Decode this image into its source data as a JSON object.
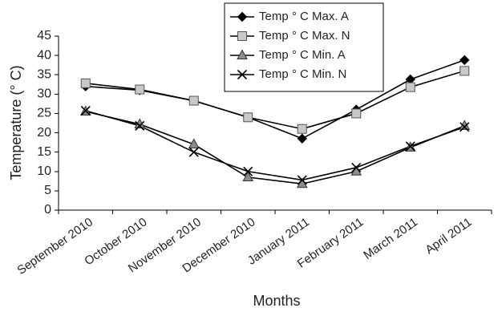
{
  "chart_data": {
    "type": "line",
    "title": "",
    "xlabel": "Months",
    "ylabel": "Temperature (° C)",
    "categories": [
      "September 2010",
      "October 2010",
      "November 2010",
      "December 2010",
      "January 2011",
      "February 2011",
      "March 2011",
      "April 2011"
    ],
    "ylim": [
      0,
      45
    ],
    "yticks": [
      0,
      5,
      10,
      15,
      20,
      25,
      30,
      35,
      40,
      45
    ],
    "grid": false,
    "legend_position": "top-center",
    "series": [
      {
        "name": "Temp ° C Max. A",
        "marker": "diamond",
        "values": [
          32,
          31,
          28.3,
          24,
          18.5,
          26,
          33.8,
          38.8
        ]
      },
      {
        "name": "Temp ° C Max. N",
        "marker": "square",
        "values": [
          32.8,
          31.2,
          28.3,
          24,
          21,
          25,
          31.8,
          36
        ]
      },
      {
        "name": "Temp ° C Min. A",
        "marker": "triangle",
        "values": [
          25.5,
          22.2,
          17,
          8.5,
          6.8,
          10,
          16.2,
          21.8
        ]
      },
      {
        "name": "Temp ° C Min. N",
        "marker": "x",
        "values": [
          25.7,
          21.8,
          15,
          10,
          7.8,
          11,
          16.5,
          21.5
        ]
      }
    ]
  }
}
